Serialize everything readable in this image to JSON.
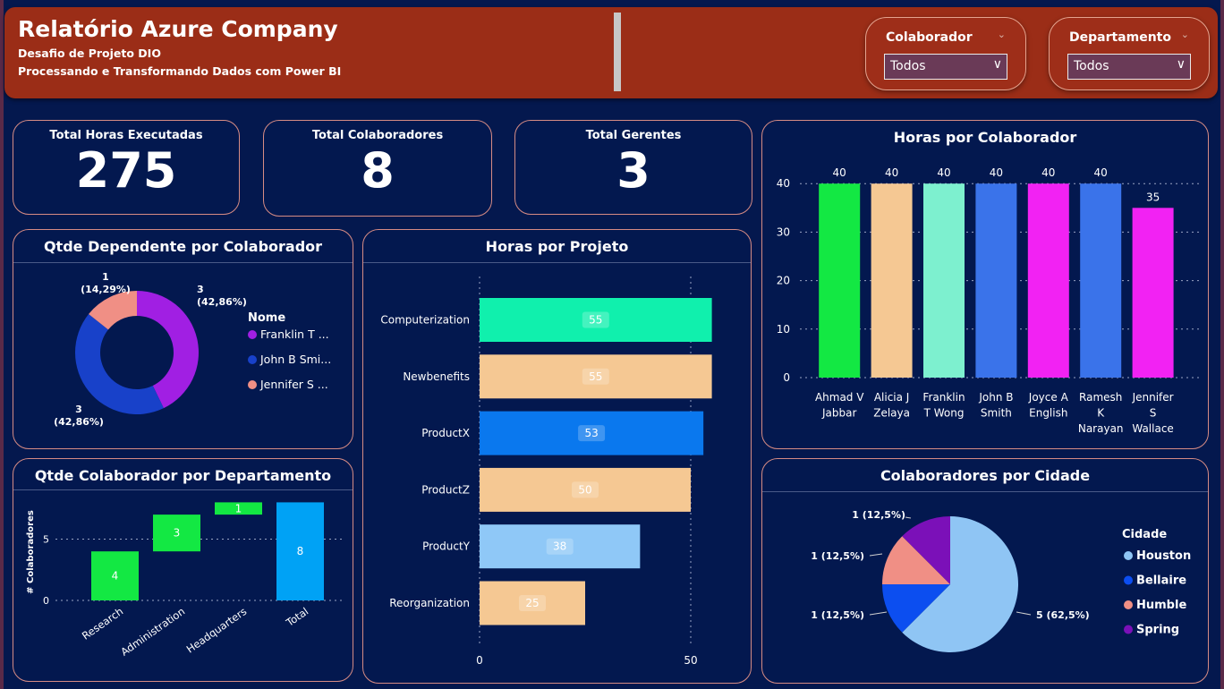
{
  "header": {
    "title": "Relatório Azure Company",
    "subtitle1": "Desafio de Projeto DIO",
    "subtitle2": "Processando e Transformando Dados com Power BI"
  },
  "slicers": [
    {
      "label": "Colaborador",
      "value": "Todos"
    },
    {
      "label": "Departamento",
      "value": "Todos"
    }
  ],
  "kpis": [
    {
      "label": "Total Horas Executadas",
      "value": "275"
    },
    {
      "label": "Total Colaboradores",
      "value": "8"
    },
    {
      "label": "Total Gerentes",
      "value": "3"
    }
  ],
  "chart_data": [
    {
      "type": "pie",
      "variant": "donut",
      "title": "Qtde Dependente por Colaborador",
      "legend_title": "Nome",
      "legend_position": "right",
      "categories": [
        "Franklin T ...",
        "John B Smi...",
        "Jennifer S ..."
      ],
      "values": [
        3,
        3,
        1
      ],
      "labels": [
        [
          "3",
          "(42,86%)"
        ],
        [
          "3",
          "(42,86%)"
        ],
        [
          "1",
          "(14,29%)"
        ]
      ],
      "colors": [
        "#a11fe3",
        "#1841c9",
        "#f08f85"
      ]
    },
    {
      "type": "bar",
      "variant": "waterfall",
      "title": "Qtde Colaborador por Departamento",
      "ylabel": "# Colaboradores",
      "categories": [
        "Research",
        "Administration",
        "Headquarters",
        "Total"
      ],
      "values": [
        4,
        3,
        1,
        8
      ],
      "yticks": [
        0,
        5
      ],
      "ylim": [
        0,
        8
      ],
      "colors": {
        "increase": "#13e843",
        "total": "#00a2f5"
      }
    },
    {
      "type": "bar",
      "orientation": "horizontal",
      "title": "Horas por Projeto",
      "categories": [
        "Computerization",
        "Newbenefits",
        "ProductX",
        "ProductZ",
        "ProductY",
        "Reorganization"
      ],
      "values": [
        55,
        55,
        53,
        50,
        38,
        25
      ],
      "xticks": [
        0,
        50
      ],
      "xlim": [
        0,
        55
      ],
      "colors": [
        "#10f0ad",
        "#f5c893",
        "#0a78ee",
        "#f5c893",
        "#8fc8f7",
        "#f5c893"
      ]
    },
    {
      "type": "bar",
      "title": "Horas por Colaborador",
      "categories": [
        [
          "Ahmad V",
          "Jabbar"
        ],
        [
          "Alicia J",
          "Zelaya"
        ],
        [
          "Franklin",
          "T Wong"
        ],
        [
          "John B",
          "Smith"
        ],
        [
          "Joyce A",
          "English"
        ],
        [
          "Ramesh",
          "K",
          "Narayan"
        ],
        [
          "Jennifer",
          "S",
          "Wallace"
        ]
      ],
      "values": [
        40,
        40,
        40,
        40,
        40,
        40,
        35
      ],
      "yticks": [
        0,
        10,
        20,
        30,
        40
      ],
      "ylim": [
        0,
        43
      ],
      "colors": [
        "#13e843",
        "#f5c893",
        "#7df0cf",
        "#3a73ea",
        "#f222f3",
        "#3a73ea",
        "#f222f3"
      ]
    },
    {
      "type": "pie",
      "title": "Colaboradores por Cidade",
      "legend_title": "Cidade",
      "legend_position": "right",
      "categories": [
        "Houston",
        "Bellaire",
        "Humble",
        "Spring"
      ],
      "values": [
        5,
        1,
        1,
        1
      ],
      "labels": [
        "5 (62,5%)",
        "1 (12,5%)",
        "1 (12,5%)",
        "1 (12,5%)"
      ],
      "colors": [
        "#8fc5f4",
        "#0c4ef0",
        "#f08f85",
        "#7b10b8"
      ]
    }
  ]
}
